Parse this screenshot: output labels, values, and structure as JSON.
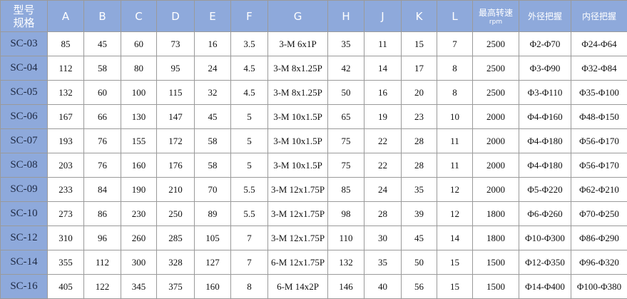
{
  "table": {
    "header": [
      [
        "型号",
        "规格"
      ],
      [
        "A"
      ],
      [
        "B"
      ],
      [
        "C"
      ],
      [
        "D"
      ],
      [
        "E"
      ],
      [
        "F"
      ],
      [
        "G"
      ],
      [
        "H"
      ],
      [
        "J"
      ],
      [
        "K"
      ],
      [
        "L"
      ],
      [
        "最高转速",
        "rpm"
      ],
      [
        "外径把握"
      ],
      [
        "内径把握"
      ]
    ],
    "rows": [
      [
        "SC-03",
        "85",
        "45",
        "60",
        "73",
        "16",
        "3.5",
        "3-M 6x1P",
        "35",
        "11",
        "15",
        "7",
        "2500",
        "Φ2-Φ70",
        "Φ24-Φ64"
      ],
      [
        "SC-04",
        "112",
        "58",
        "80",
        "95",
        "24",
        "4.5",
        "3-M 8x1.25P",
        "42",
        "14",
        "17",
        "8",
        "2500",
        "Φ3-Φ90",
        "Φ32-Φ84"
      ],
      [
        "SC-05",
        "132",
        "60",
        "100",
        "115",
        "32",
        "4.5",
        "3-M 8x1.25P",
        "50",
        "16",
        "20",
        "8",
        "2500",
        "Φ3-Φ110",
        "Φ35-Φ100"
      ],
      [
        "SC-06",
        "167",
        "66",
        "130",
        "147",
        "45",
        "5",
        "3-M 10x1.5P",
        "65",
        "19",
        "23",
        "10",
        "2000",
        "Φ4-Φ160",
        "Φ48-Φ150"
      ],
      [
        "SC-07",
        "193",
        "76",
        "155",
        "172",
        "58",
        "5",
        "3-M 10x1.5P",
        "75",
        "22",
        "28",
        "11",
        "2000",
        "Φ4-Φ180",
        "Φ56-Φ170"
      ],
      [
        "SC-08",
        "203",
        "76",
        "160",
        "176",
        "58",
        "5",
        "3-M 10x1.5P",
        "75",
        "22",
        "28",
        "11",
        "2000",
        "Φ4-Φ180",
        "Φ56-Φ170"
      ],
      [
        "SC-09",
        "233",
        "84",
        "190",
        "210",
        "70",
        "5.5",
        "3-M 12x1.75P",
        "85",
        "24",
        "35",
        "12",
        "2000",
        "Φ5-Φ220",
        "Φ62-Φ210"
      ],
      [
        "SC-10",
        "273",
        "86",
        "230",
        "250",
        "89",
        "5.5",
        "3-M 12x1.75P",
        "98",
        "28",
        "39",
        "12",
        "1800",
        "Φ6-Φ260",
        "Φ70-Φ250"
      ],
      [
        "SC-12",
        "310",
        "96",
        "260",
        "285",
        "105",
        "7",
        "3-M 12x1.75P",
        "110",
        "30",
        "45",
        "14",
        "1800",
        "Φ10-Φ300",
        "Φ86-Φ290"
      ],
      [
        "SC-14",
        "355",
        "112",
        "300",
        "328",
        "127",
        "7",
        "6-M 12x1.75P",
        "132",
        "35",
        "50",
        "15",
        "1500",
        "Φ12-Φ350",
        "Φ96-Φ320"
      ],
      [
        "SC-16",
        "405",
        "122",
        "345",
        "375",
        "160",
        "8",
        "6-M 14x2P",
        "146",
        "40",
        "56",
        "15",
        "1500",
        "Φ14-Φ400",
        "Φ100-Φ380"
      ]
    ]
  }
}
